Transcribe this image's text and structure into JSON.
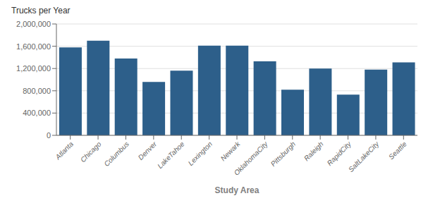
{
  "chart_data": {
    "type": "bar",
    "ylabel": "Trucks per Year",
    "xlabel": "Study Area",
    "categories": [
      "Atlanta",
      "Chicago",
      "Columbus",
      "Denver",
      "LakeTahoe",
      "Lexington",
      "Newark",
      "OklahomaCity",
      "Pittsburgh",
      "Raleigh",
      "RapidCity",
      "SaltLakeCity",
      "Seattle"
    ],
    "values": [
      1580000,
      1700000,
      1380000,
      960000,
      1160000,
      1610000,
      1610000,
      1330000,
      820000,
      1200000,
      730000,
      1180000,
      1310000
    ],
    "color": "#2d5f8a",
    "ylim": [
      0,
      2000000
    ],
    "yticks": [
      0,
      {
        "value": 400000,
        "label": "400,000"
      },
      {
        "value": 800000,
        "label": "800,000"
      },
      {
        "value": 1200000,
        "label": "1,200,000"
      },
      {
        "value": 1600000,
        "label": "1,600,000"
      },
      {
        "value": 2000000,
        "label": "2,000,000"
      }
    ],
    "grid": true
  }
}
